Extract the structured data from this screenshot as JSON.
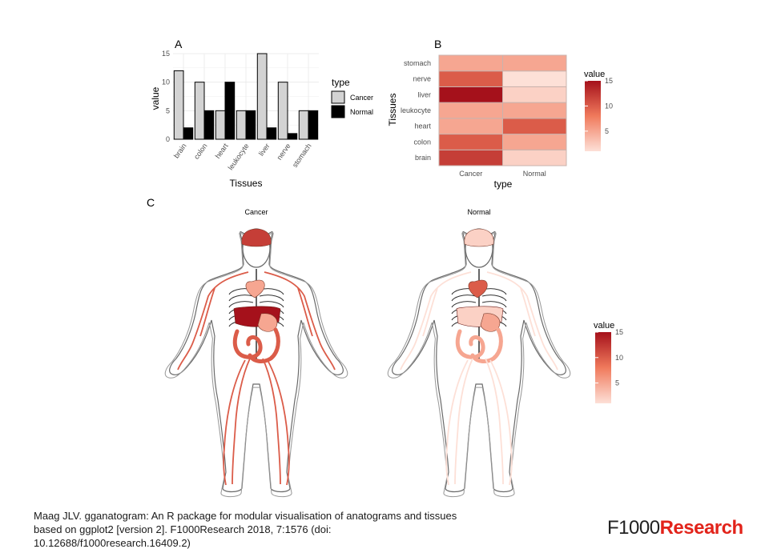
{
  "figure": {
    "caption": "Maag JLV. gganatogram: An R package for modular visualisation of anatograms and tissues based on ggplot2 [version 2]. F1000Research 2018, 7:1576 (doi: 10.12688/f1000research.16409.2)",
    "brand_prefix": "F1000",
    "brand_suffix": "Research",
    "brand_accent_color": "#e2231a"
  },
  "colors": {
    "cancer_bar": "#d3d3d3",
    "normal_bar": "#000000",
    "scale_low": "#fde0d7",
    "scale_high": "#a5111b",
    "outline": "#555555"
  },
  "chart_data": [
    {
      "panel": "A",
      "type": "bar",
      "title": "",
      "xlabel": "Tissues",
      "ylabel": "value",
      "categories": [
        "brain",
        "colon",
        "heart",
        "leukocyte",
        "liver",
        "nerve",
        "stomach"
      ],
      "series": [
        {
          "name": "Cancer",
          "values": [
            12,
            10,
            5,
            5,
            15,
            10,
            5
          ]
        },
        {
          "name": "Normal",
          "values": [
            2,
            5,
            10,
            5,
            2,
            1,
            5
          ]
        }
      ],
      "ylim": [
        0,
        15
      ],
      "yticks": [
        0,
        5,
        10,
        15
      ],
      "grid": true,
      "legend": {
        "title": "type",
        "position": "right"
      }
    },
    {
      "panel": "B",
      "type": "heatmap",
      "xlabel": "type",
      "ylabel": "Tissues",
      "x": [
        "Cancer",
        "Normal"
      ],
      "y": [
        "brain",
        "colon",
        "heart",
        "leukocyte",
        "liver",
        "nerve",
        "stomach"
      ],
      "values": [
        [
          12,
          2
        ],
        [
          10,
          5
        ],
        [
          5,
          10
        ],
        [
          5,
          5
        ],
        [
          15,
          2
        ],
        [
          10,
          1
        ],
        [
          5,
          5
        ]
      ],
      "colorbar": {
        "title": "value",
        "ticks": [
          5,
          10,
          15
        ],
        "range": [
          1,
          15
        ],
        "position": "right"
      }
    },
    {
      "panel": "C",
      "type": "anatogram",
      "facets": [
        {
          "label": "Cancer",
          "values": {
            "brain": 12,
            "colon": 10,
            "heart": 5,
            "leukocyte": 5,
            "liver": 15,
            "nerve": 10,
            "stomach": 5
          }
        },
        {
          "label": "Normal",
          "values": {
            "brain": 2,
            "colon": 5,
            "heart": 10,
            "leukocyte": 5,
            "liver": 2,
            "nerve": 1,
            "stomach": 5
          }
        }
      ],
      "colorbar": {
        "title": "value",
        "ticks": [
          5,
          10,
          15
        ],
        "range": [
          1,
          15
        ],
        "position": "right"
      }
    }
  ]
}
